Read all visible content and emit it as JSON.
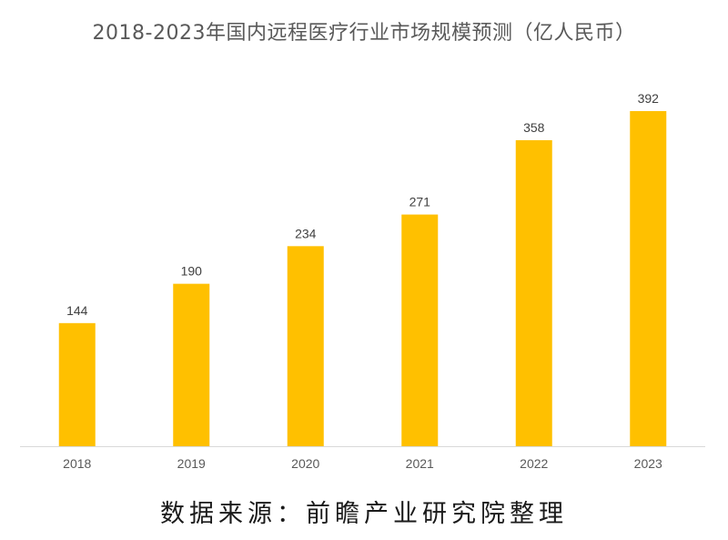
{
  "chart_data": {
    "type": "bar",
    "title": "2018-2023年国内远程医疗行业市场规模预测（亿人民币）",
    "categories": [
      "2018",
      "2019",
      "2020",
      "2021",
      "2022",
      "2023"
    ],
    "values": [
      144,
      190,
      234,
      271,
      358,
      392
    ],
    "ylim": [
      0,
      392
    ],
    "grid": false,
    "bar_color": "#FFC000",
    "axis_color": "#D9D9D9"
  },
  "source_note": "数据来源：前瞻产业研究院整理"
}
